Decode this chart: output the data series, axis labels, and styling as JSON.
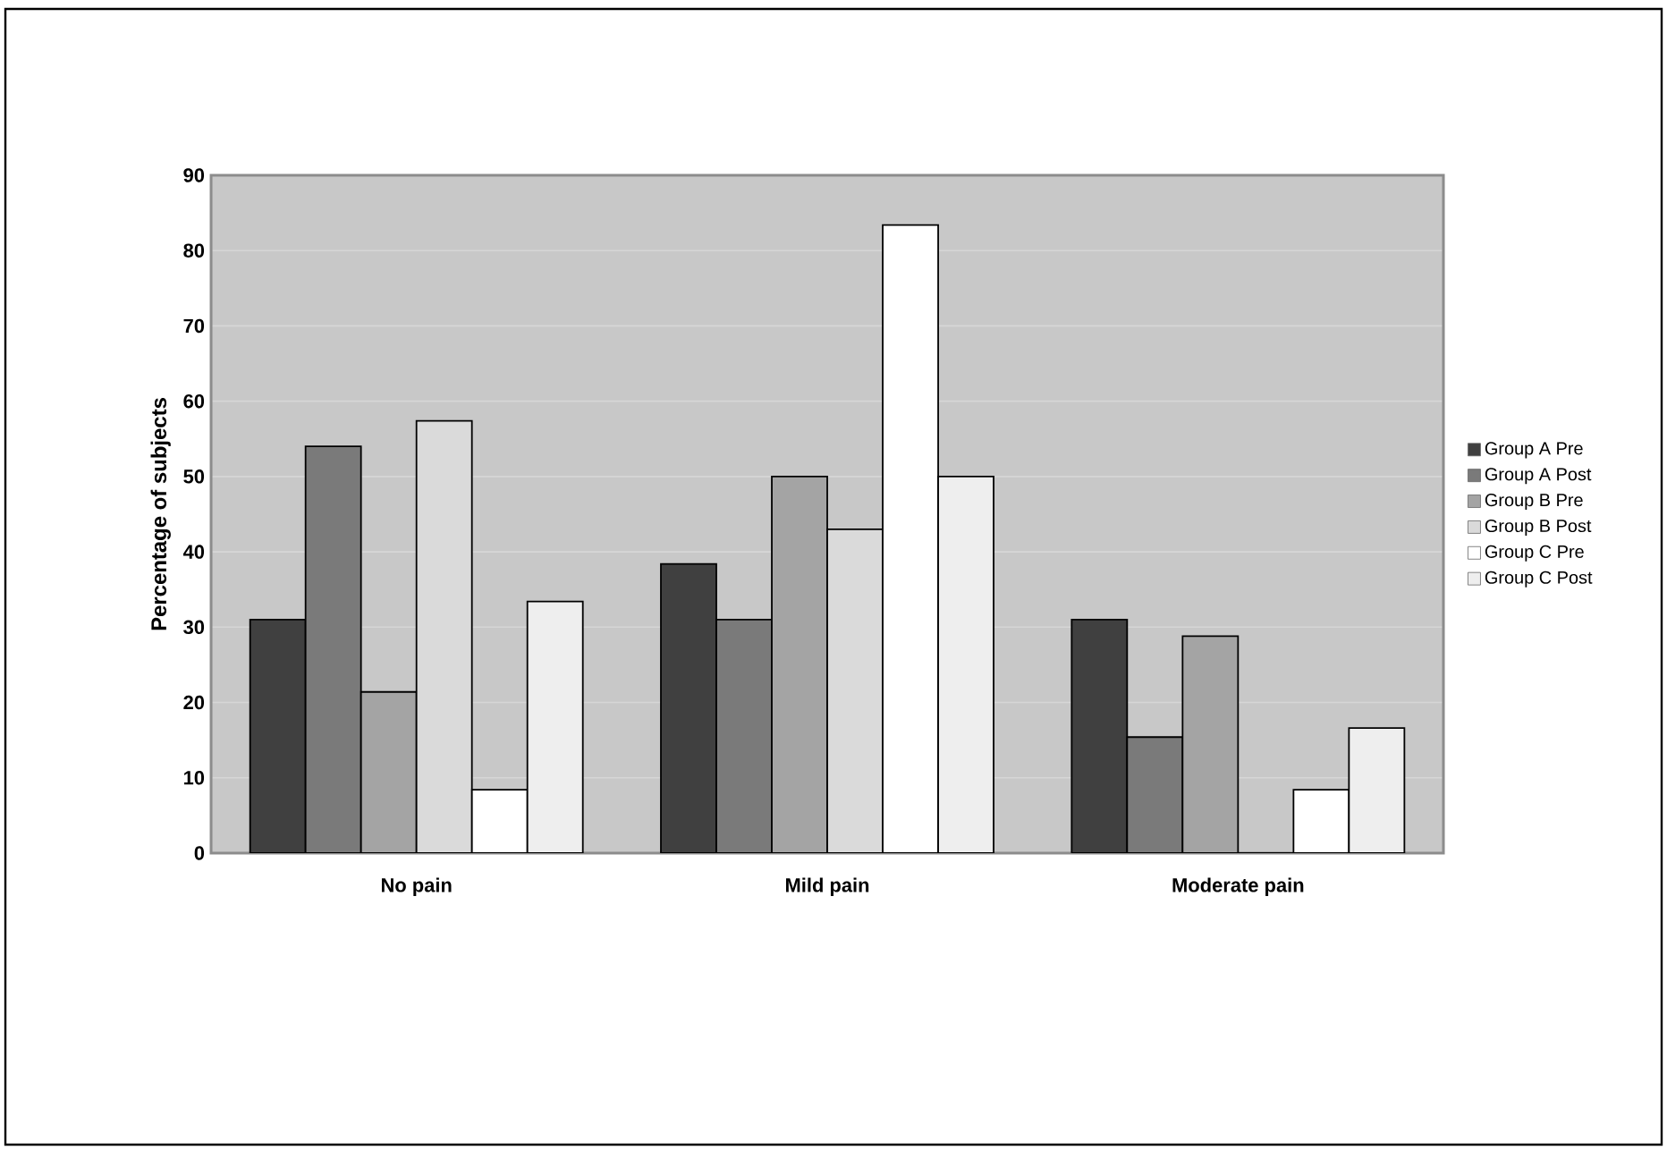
{
  "chart_data": {
    "type": "bar",
    "ylabel": "Percentage of subjects",
    "categories": [
      "No pain",
      "Mild pain",
      "Moderate pain"
    ],
    "series": [
      {
        "name": "Group A Pre",
        "color": "#404040",
        "values": [
          31.0,
          38.4,
          31.0
        ]
      },
      {
        "name": "Group A Post",
        "color": "#7a7a7a",
        "values": [
          54.0,
          31.0,
          15.4
        ]
      },
      {
        "name": "Group B Pre",
        "color": "#a4a4a4",
        "values": [
          21.4,
          50.0,
          28.8
        ]
      },
      {
        "name": "Group B Post",
        "color": "#dadada",
        "values": [
          57.4,
          43.0,
          0
        ]
      },
      {
        "name": "Group C Pre",
        "color": "#ffffff",
        "values": [
          8.4,
          83.4,
          8.4
        ]
      },
      {
        "name": "Group C Post",
        "color": "#eeeeee",
        "values": [
          33.4,
          50.0,
          16.6
        ]
      }
    ],
    "ylim": [
      0,
      90
    ],
    "yticks": [
      0,
      10,
      20,
      30,
      40,
      50,
      60,
      70,
      80,
      90
    ],
    "grid": "y",
    "legend": "right"
  }
}
